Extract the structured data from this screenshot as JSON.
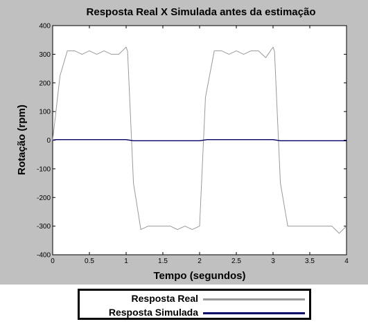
{
  "chart_data": {
    "type": "line",
    "title": "Resposta Real  X  Simulada  antes da estimação",
    "xlabel": "Tempo (segundos)",
    "ylabel": "Rotação (rpm)",
    "xlim": [
      0,
      4
    ],
    "ylim": [
      -400,
      400
    ],
    "xticks": [
      0,
      0.5,
      1,
      1.5,
      2,
      2.5,
      3,
      3.5,
      4
    ],
    "xtick_labels": [
      "0",
      "0.5",
      "1",
      "1.5",
      "2",
      "2.5",
      "3",
      "3.5",
      "4"
    ],
    "yticks": [
      -400,
      -300,
      -200,
      -100,
      0,
      100,
      200,
      300,
      400
    ],
    "ytick_labels": [
      "-400",
      "-300",
      "-200",
      "-100",
      "0",
      "100",
      "200",
      "300",
      "400"
    ],
    "grid": false,
    "legend_position": "bottom",
    "series": [
      {
        "name": "Resposta Real",
        "color": "#999999",
        "x": [
          0,
          0.1,
          0.2,
          0.3,
          0.4,
          0.5,
          0.6,
          0.7,
          0.8,
          0.9,
          1.0,
          1.02,
          1.1,
          1.2,
          1.3,
          1.4,
          1.5,
          1.6,
          1.7,
          1.8,
          1.9,
          2.0,
          2.08,
          2.2,
          2.3,
          2.4,
          2.5,
          2.6,
          2.7,
          2.8,
          2.9,
          3.0,
          3.02,
          3.1,
          3.2,
          3.3,
          3.4,
          3.5,
          3.6,
          3.7,
          3.8,
          3.9,
          4.0
        ],
        "y": [
          0,
          225,
          312,
          312,
          300,
          312,
          300,
          312,
          300,
          300,
          325,
          310,
          -150,
          -312,
          -300,
          -300,
          -300,
          -300,
          -312,
          -300,
          -312,
          -300,
          150,
          312,
          312,
          300,
          312,
          300,
          312,
          312,
          288,
          325,
          310,
          -150,
          -300,
          -300,
          -300,
          -300,
          -300,
          -300,
          -300,
          -325,
          -300
        ]
      },
      {
        "name": "Resposta Simulada",
        "color": "#000066",
        "x": [
          0,
          0.05,
          1.0,
          1.1,
          2.0,
          2.1,
          3.0,
          3.1,
          4.0
        ],
        "y": [
          0,
          2,
          2,
          -2,
          -2,
          2,
          2,
          -2,
          -2
        ]
      }
    ]
  }
}
